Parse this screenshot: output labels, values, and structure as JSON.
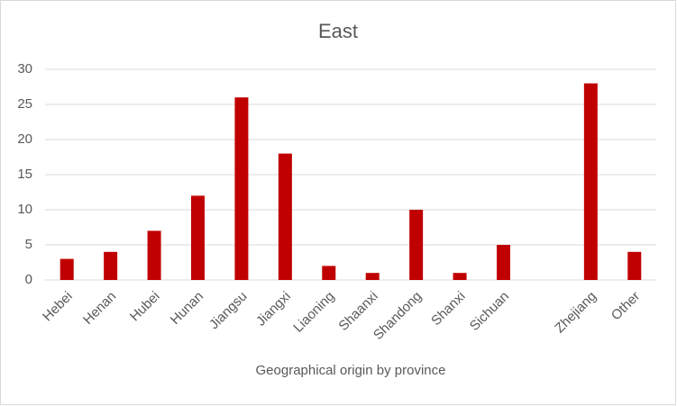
{
  "chart_data": {
    "type": "bar",
    "title": "East",
    "x_label": "Geographical origin by province",
    "categories": [
      "Hebei",
      "Henan",
      "Hubei",
      "Hunan",
      "Jiangsu",
      "Jiangxi",
      "Liaoning",
      "Shaanxi",
      "Shandong",
      "Shanxi",
      "Sichuan",
      null,
      "Zhejiang",
      "Other"
    ],
    "values": [
      3,
      4,
      7,
      12,
      26,
      18,
      2,
      1,
      10,
      1,
      5,
      null,
      28,
      4
    ],
    "color": "#c00000",
    "ylim": [
      0,
      30
    ],
    "yticks": [
      0,
      5,
      10,
      15,
      20,
      25,
      30
    ],
    "grid": true
  }
}
